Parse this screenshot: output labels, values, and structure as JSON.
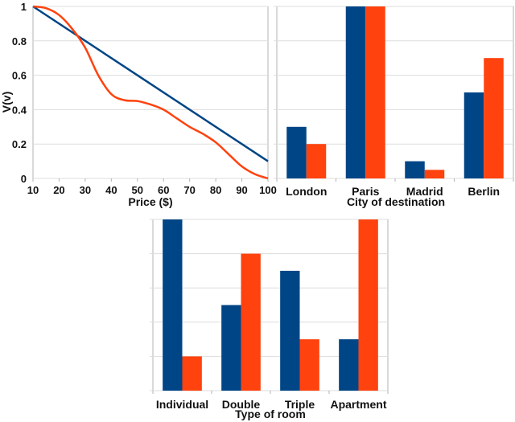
{
  "colors": {
    "series_a": "#004586",
    "series_b": "#ff420e",
    "grid": "#dddddd",
    "axis": "#b3b3b3"
  },
  "chart_data": [
    {
      "type": "line",
      "xlabel": "Price ($)",
      "ylabel": "V(v)",
      "xlim": [
        10,
        100
      ],
      "ylim": [
        0,
        1
      ],
      "xticks": [
        "10",
        "20",
        "30",
        "40",
        "50",
        "60",
        "70",
        "80",
        "90",
        "100"
      ],
      "yticks": [
        "0",
        "0.2",
        "0.4",
        "0.6",
        "0.8",
        "1"
      ],
      "grid": true,
      "series": [
        {
          "x": [
            10,
            100
          ],
          "y": [
            1,
            0.1
          ]
        },
        {
          "x": [
            10,
            15,
            20,
            25,
            30,
            35,
            40,
            45,
            50,
            55,
            60,
            65,
            70,
            75,
            80,
            85,
            90,
            95,
            100
          ],
          "y": [
            1,
            0.99,
            0.95,
            0.87,
            0.76,
            0.6,
            0.49,
            0.455,
            0.45,
            0.43,
            0.4,
            0.35,
            0.3,
            0.26,
            0.21,
            0.14,
            0.07,
            0.025,
            0
          ]
        }
      ]
    },
    {
      "type": "bar",
      "xlabel": "City of destination",
      "categories": [
        "London",
        "Paris",
        "Madrid",
        "Berlin"
      ],
      "ylim": [
        0,
        1
      ],
      "grid": true,
      "series": [
        {
          "values": [
            0.3,
            1.0,
            0.1,
            0.5
          ]
        },
        {
          "values": [
            0.2,
            1.0,
            0.05,
            0.7
          ]
        }
      ]
    },
    {
      "type": "bar",
      "xlabel": "Type of room",
      "categories": [
        "Individual",
        "Double",
        "Triple",
        "Apartment"
      ],
      "ylim": [
        0,
        1
      ],
      "grid": true,
      "series": [
        {
          "values": [
            1.0,
            0.5,
            0.7,
            0.3
          ]
        },
        {
          "values": [
            0.2,
            0.8,
            0.3,
            1.0
          ]
        }
      ]
    }
  ]
}
